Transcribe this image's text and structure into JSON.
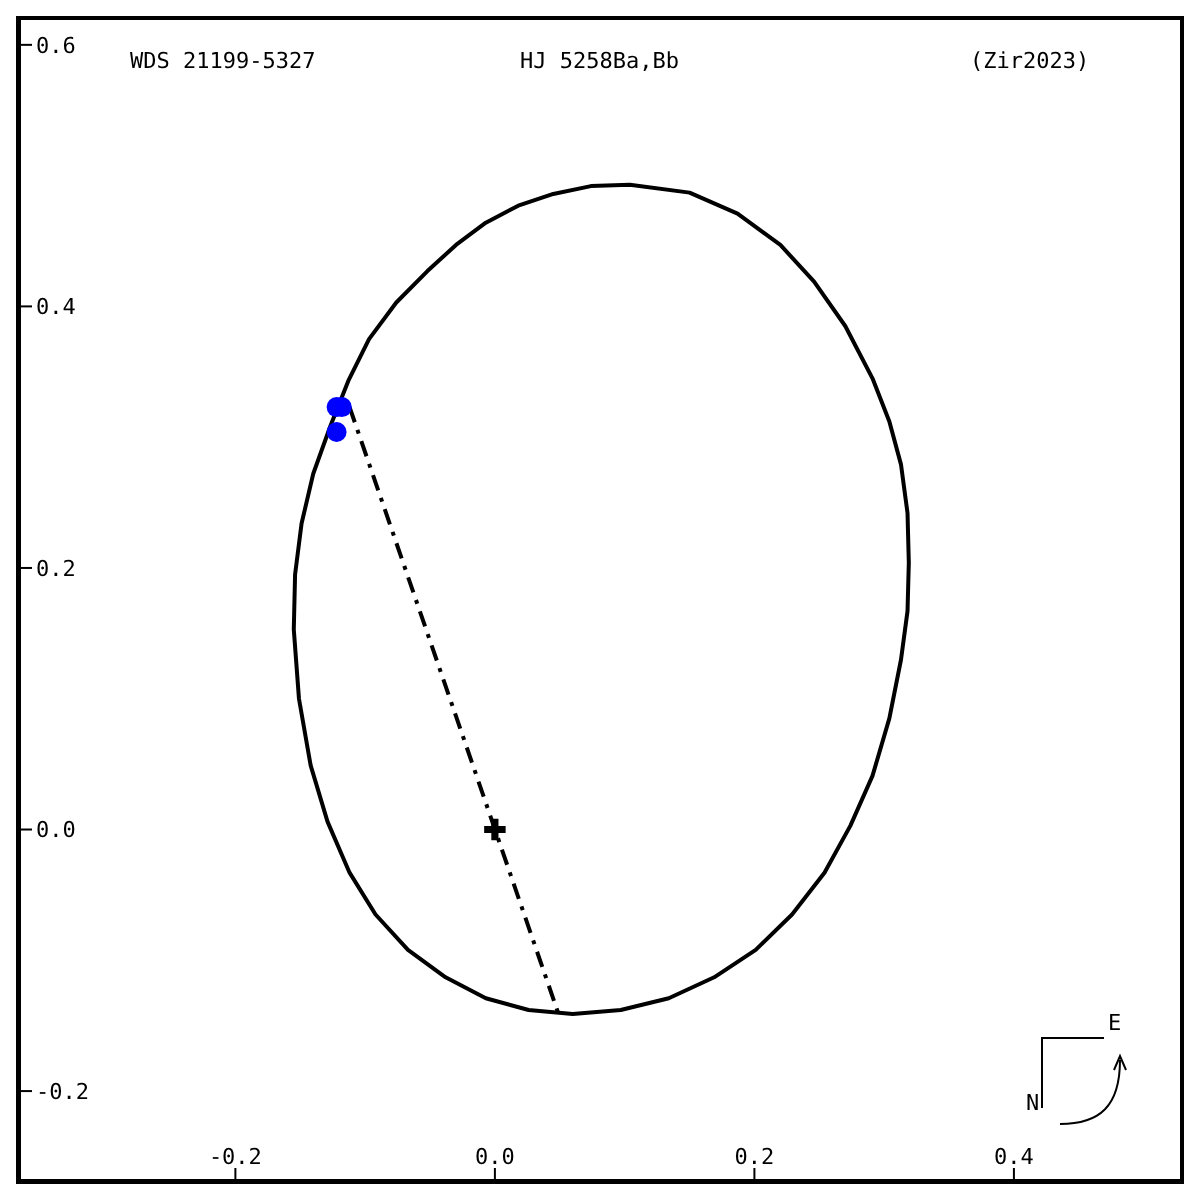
{
  "chart_data": {
    "type": "scatter",
    "title": "WDS 21199-5327",
    "subtitle": "HJ 5258Ba,Bb",
    "annotations": [
      "(Zir2023)",
      "N",
      "E"
    ],
    "xlim": [
      -0.366,
      0.528
    ],
    "ylim": [
      -0.268,
      0.619
    ],
    "xticks": [
      -0.2,
      {
        "value": 0,
        "label": "0.0"
      },
      0.2,
      0.4
    ],
    "yticks": [
      -0.2,
      {
        "value": 0,
        "label": "0.0"
      },
      0.2,
      0.4,
      0.6
    ],
    "grid": false,
    "legend": false,
    "series": [
      {
        "type": "line",
        "color": "#000000",
        "marker": "none",
        "line_style": "dashed",
        "x": [
          -0.112,
          0.049
        ],
        "values": [
          0.323,
          -0.141
        ]
      },
      {
        "type": "scatter",
        "color": "#0000ff",
        "marker": "circle",
        "x": [
          -0.122,
          -0.118,
          -0.122
        ],
        "values": [
          0.323,
          0.323,
          0.304
        ]
      },
      {
        "type": "scatter",
        "color": "#000000",
        "marker": "cross",
        "x": [
          0
        ],
        "values": [
          0
        ]
      }
    ]
  }
}
